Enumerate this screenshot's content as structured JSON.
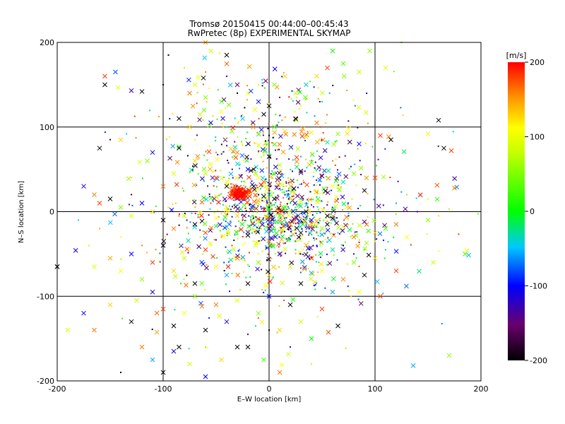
{
  "chart_data": {
    "type": "scatter",
    "title": "Tromsø 20150415 00:44:00–00:45:43",
    "subtitle": "RwPretec (8p) EXPERIMENTAL SKYMAP",
    "xlabel": "E–W location [km]",
    "ylabel": "N–S location [km]",
    "xlim": [
      -200,
      200
    ],
    "ylim": [
      -200,
      200
    ],
    "xticks": [
      "-200",
      "-100",
      "0",
      "100",
      "200"
    ],
    "yticks": [
      "-200",
      "-100",
      "0",
      "100",
      "200"
    ],
    "grid": true,
    "colorbar": {
      "label": "[m/s]",
      "range": [
        -200,
        200
      ],
      "ticks": [
        "-200",
        "-100",
        "0",
        "100",
        "200"
      ],
      "colormap": "rainbow (black-purple-blue-cyan-green-yellow-orange-red)"
    },
    "markers": [
      "cross",
      "dot"
    ],
    "clusters": [
      {
        "x": -28,
        "y": 22,
        "value": 200,
        "note": "dense red cluster"
      },
      {
        "x": 10,
        "y": -10,
        "value": 0
      },
      {
        "x": 40,
        "y": 0,
        "value": -150
      }
    ],
    "points": [
      [
        -155,
        160,
        180,
        1
      ],
      [
        -145,
        165,
        -80,
        1
      ],
      [
        -155,
        150,
        -200,
        1
      ],
      [
        -130,
        143,
        -130,
        1
      ],
      [
        -120,
        142,
        -200,
        1
      ],
      [
        -95,
        185,
        -200,
        0
      ],
      [
        -60,
        200,
        140,
        1
      ],
      [
        -55,
        190,
        60,
        1
      ],
      [
        -40,
        185,
        -200,
        1
      ],
      [
        -62,
        158,
        -200,
        1
      ],
      [
        -70,
        150,
        80,
        1
      ],
      [
        -75,
        140,
        160,
        1
      ],
      [
        -60,
        135,
        40,
        1
      ],
      [
        -45,
        130,
        20,
        1
      ],
      [
        -30,
        150,
        -150,
        1
      ],
      [
        -20,
        140,
        100,
        1
      ],
      [
        -10,
        130,
        -100,
        1
      ],
      [
        0,
        125,
        -200,
        1
      ],
      [
        5,
        150,
        40,
        1
      ],
      [
        15,
        160,
        120,
        1
      ],
      [
        25,
        140,
        60,
        1
      ],
      [
        35,
        150,
        -50,
        1
      ],
      [
        45,
        160,
        120,
        1
      ],
      [
        55,
        170,
        180,
        1
      ],
      [
        60,
        190,
        0,
        1
      ],
      [
        70,
        175,
        20,
        1
      ],
      [
        85,
        165,
        60,
        1
      ],
      [
        95,
        190,
        40,
        1
      ],
      [
        110,
        170,
        80,
        1
      ],
      [
        125,
        200,
        0,
        0
      ],
      [
        -85,
        110,
        -200,
        1
      ],
      [
        -75,
        100,
        120,
        1
      ],
      [
        -65,
        115,
        60,
        1
      ],
      [
        -55,
        105,
        -100,
        1
      ],
      [
        -45,
        118,
        100,
        1
      ],
      [
        -35,
        95,
        40,
        1
      ],
      [
        -25,
        110,
        -50,
        1
      ],
      [
        -15,
        100,
        150,
        1
      ],
      [
        -5,
        115,
        -200,
        1
      ],
      [
        5,
        100,
        20,
        1
      ],
      [
        15,
        95,
        120,
        1
      ],
      [
        25,
        110,
        -200,
        1
      ],
      [
        35,
        88,
        80,
        1
      ],
      [
        45,
        105,
        160,
        1
      ],
      [
        55,
        82,
        -30,
        1
      ],
      [
        65,
        92,
        40,
        1
      ],
      [
        75,
        98,
        100,
        1
      ],
      [
        85,
        80,
        -100,
        1
      ],
      [
        105,
        90,
        180,
        1
      ],
      [
        115,
        85,
        -200,
        1
      ],
      [
        160,
        108,
        -200,
        1
      ],
      [
        150,
        92,
        110,
        1
      ],
      [
        165,
        75,
        -200,
        1
      ],
      [
        172,
        72,
        180,
        1
      ],
      [
        175,
        28,
        160,
        1
      ],
      [
        -160,
        75,
        -200,
        1
      ],
      [
        -140,
        85,
        120,
        1
      ],
      [
        -115,
        60,
        40,
        1
      ],
      [
        -110,
        70,
        -100,
        1
      ],
      [
        -100,
        30,
        160,
        1
      ],
      [
        -90,
        45,
        80,
        1
      ],
      [
        -85,
        75,
        -200,
        1
      ],
      [
        -70,
        60,
        120,
        1
      ],
      [
        -60,
        45,
        60,
        1
      ],
      [
        -50,
        40,
        180,
        1
      ],
      [
        -40,
        30,
        -200,
        1
      ],
      [
        -30,
        70,
        160,
        1
      ],
      [
        -20,
        50,
        -100,
        1
      ],
      [
        -10,
        40,
        100,
        1
      ],
      [
        0,
        65,
        -200,
        1
      ],
      [
        10,
        55,
        60,
        1
      ],
      [
        20,
        35,
        140,
        1
      ],
      [
        30,
        48,
        -200,
        1
      ],
      [
        40,
        58,
        20,
        1
      ],
      [
        50,
        42,
        -150,
        1
      ],
      [
        60,
        30,
        100,
        1
      ],
      [
        70,
        35,
        -30,
        1
      ],
      [
        80,
        45,
        40,
        1
      ],
      [
        90,
        25,
        -200,
        1
      ],
      [
        100,
        40,
        180,
        1
      ],
      [
        -175,
        30,
        -120,
        1
      ],
      [
        -165,
        20,
        160,
        1
      ],
      [
        -160,
        10,
        180,
        1
      ],
      [
        -150,
        15,
        -200,
        1
      ],
      [
        -140,
        5,
        40,
        1
      ],
      [
        -130,
        -5,
        80,
        1
      ],
      [
        -120,
        10,
        -100,
        1
      ],
      [
        -110,
        0,
        120,
        1
      ],
      [
        -100,
        -10,
        -200,
        1
      ],
      [
        -90,
        -20,
        160,
        1
      ],
      [
        -80,
        -5,
        60,
        1
      ],
      [
        -70,
        -15,
        -200,
        1
      ],
      [
        -60,
        -25,
        180,
        1
      ],
      [
        -50,
        -8,
        100,
        1
      ],
      [
        -40,
        -18,
        -50,
        1
      ],
      [
        -30,
        -5,
        120,
        1
      ],
      [
        -20,
        -28,
        -200,
        1
      ],
      [
        -10,
        -12,
        60,
        1
      ],
      [
        0,
        -20,
        -100,
        1
      ],
      [
        10,
        -5,
        20,
        1
      ],
      [
        20,
        -15,
        140,
        1
      ],
      [
        30,
        -25,
        -200,
        1
      ],
      [
        40,
        -10,
        -120,
        1
      ],
      [
        50,
        -20,
        40,
        1
      ],
      [
        60,
        -8,
        -200,
        1
      ],
      [
        70,
        -18,
        80,
        1
      ],
      [
        80,
        -30,
        160,
        1
      ],
      [
        90,
        -12,
        -150,
        1
      ],
      [
        100,
        -25,
        120,
        1
      ],
      [
        110,
        -20,
        20,
        1
      ],
      [
        120,
        -15,
        160,
        1
      ],
      [
        150,
        -10,
        40,
        1
      ],
      [
        130,
        -30,
        100,
        1
      ],
      [
        -200,
        -65,
        -200,
        1
      ],
      [
        -165,
        -65,
        80,
        1
      ],
      [
        -150,
        -55,
        140,
        1
      ],
      [
        -140,
        -70,
        100,
        1
      ],
      [
        -130,
        -50,
        -100,
        1
      ],
      [
        -120,
        -80,
        40,
        1
      ],
      [
        -110,
        -60,
        180,
        1
      ],
      [
        -100,
        -40,
        -200,
        1
      ],
      [
        -90,
        -70,
        120,
        1
      ],
      [
        -80,
        -55,
        60,
        1
      ],
      [
        -70,
        -85,
        -200,
        1
      ],
      [
        -60,
        -45,
        180,
        1
      ],
      [
        -50,
        -65,
        100,
        1
      ],
      [
        -40,
        -75,
        -60,
        1
      ],
      [
        -30,
        -55,
        160,
        1
      ],
      [
        -20,
        -85,
        -200,
        1
      ],
      [
        -10,
        -60,
        40,
        1
      ],
      [
        0,
        -75,
        120,
        1
      ],
      [
        10,
        -50,
        -100,
        1
      ],
      [
        20,
        -65,
        60,
        1
      ],
      [
        30,
        -85,
        -200,
        1
      ],
      [
        40,
        -55,
        180,
        1
      ],
      [
        50,
        -70,
        100,
        1
      ],
      [
        60,
        -45,
        -30,
        1
      ],
      [
        70,
        -80,
        160,
        1
      ],
      [
        80,
        -60,
        40,
        1
      ],
      [
        90,
        -75,
        -200,
        1
      ],
      [
        100,
        -55,
        120,
        1
      ],
      [
        120,
        -70,
        180,
        1
      ],
      [
        155,
        -60,
        60,
        1
      ],
      [
        185,
        -50,
        20,
        1
      ],
      [
        -175,
        -120,
        -100,
        1
      ],
      [
        -165,
        -140,
        160,
        1
      ],
      [
        -150,
        -110,
        120,
        1
      ],
      [
        -130,
        -130,
        -200,
        1
      ],
      [
        -125,
        -105,
        60,
        1
      ],
      [
        -110,
        -95,
        -100,
        1
      ],
      [
        -100,
        -115,
        180,
        1
      ],
      [
        -90,
        -135,
        -200,
        1
      ],
      [
        -80,
        -120,
        100,
        1
      ],
      [
        -70,
        -100,
        40,
        1
      ],
      [
        -60,
        -140,
        -200,
        1
      ],
      [
        -50,
        -110,
        160,
        1
      ],
      [
        -40,
        -130,
        -120,
        1
      ],
      [
        -30,
        -105,
        80,
        1
      ],
      [
        -20,
        -160,
        -200,
        1
      ],
      [
        -10,
        -120,
        40,
        1
      ],
      [
        0,
        -100,
        -100,
        1
      ],
      [
        10,
        -140,
        120,
        1
      ],
      [
        20,
        -110,
        -200,
        1
      ],
      [
        30,
        -130,
        60,
        1
      ],
      [
        40,
        -150,
        0,
        1
      ],
      [
        50,
        -115,
        180,
        1
      ],
      [
        60,
        -95,
        -60,
        1
      ],
      [
        65,
        -135,
        -200,
        1
      ],
      [
        85,
        -95,
        100,
        1
      ],
      [
        105,
        -100,
        180,
        1
      ],
      [
        -120,
        -160,
        160,
        1
      ],
      [
        -110,
        -175,
        -60,
        1
      ],
      [
        -100,
        -190,
        -200,
        1
      ],
      [
        -90,
        -165,
        -120,
        1
      ],
      [
        -85,
        -160,
        -200,
        1
      ],
      [
        -75,
        -180,
        60,
        1
      ],
      [
        -60,
        -195,
        -100,
        1
      ],
      [
        -45,
        -175,
        120,
        1
      ],
      [
        -30,
        -160,
        -200,
        1
      ],
      [
        -5,
        -175,
        20,
        1
      ],
      [
        10,
        -190,
        160,
        1
      ],
      [
        170,
        -170,
        40,
        1
      ],
      [
        -190,
        -140,
        80,
        1
      ],
      [
        -140,
        -190,
        -200,
        0
      ],
      [
        -200,
        -65,
        -200,
        1
      ],
      [
        -28,
        22,
        200,
        1
      ],
      [
        -26,
        18,
        200,
        1
      ],
      [
        -30,
        24,
        200,
        1
      ],
      [
        -24,
        20,
        200,
        1
      ],
      [
        -32,
        19,
        200,
        1
      ],
      [
        -27,
        25,
        200,
        1
      ],
      [
        -22,
        23,
        200,
        1
      ],
      [
        -29,
        16,
        200,
        1
      ],
      [
        -25,
        21,
        200,
        1
      ],
      [
        -31,
        21,
        200,
        1
      ],
      [
        -10,
        20,
        -200,
        0
      ],
      [
        -5,
        18,
        -200,
        1
      ],
      [
        0,
        25,
        -150,
        0
      ],
      [
        5,
        15,
        -200,
        1
      ],
      [
        15,
        20,
        -100,
        0
      ],
      [
        20,
        10,
        -50,
        0
      ],
      [
        25,
        5,
        0,
        0
      ],
      [
        30,
        15,
        -20,
        0
      ],
      [
        35,
        0,
        -200,
        1
      ],
      [
        40,
        8,
        -150,
        0
      ],
      [
        45,
        -2,
        -30,
        0
      ],
      [
        50,
        12,
        20,
        0
      ],
      [
        55,
        -5,
        -200,
        1
      ],
      [
        60,
        5,
        -80,
        0
      ],
      [
        65,
        15,
        -120,
        0
      ],
      [
        -15,
        -5,
        0,
        0
      ],
      [
        -5,
        -10,
        -20,
        0
      ],
      [
        5,
        -5,
        -40,
        0
      ],
      [
        15,
        -10,
        20,
        0
      ],
      [
        25,
        -20,
        -10,
        0
      ],
      [
        35,
        -15,
        -60,
        0
      ],
      [
        45,
        -25,
        0,
        0
      ],
      [
        55,
        -15,
        -200,
        1
      ],
      [
        65,
        -25,
        -40,
        0
      ],
      [
        75,
        -5,
        -100,
        0
      ],
      [
        -5,
        5,
        -40,
        0
      ],
      [
        5,
        8,
        -60,
        0
      ],
      [
        15,
        -2,
        -30,
        0
      ],
      [
        25,
        2,
        10,
        0
      ],
      [
        35,
        -8,
        -20,
        0
      ],
      [
        -20,
        10,
        160,
        0
      ],
      [
        -40,
        5,
        120,
        0
      ],
      [
        -55,
        10,
        180,
        0
      ],
      [
        -65,
        0,
        140,
        0
      ],
      [
        -75,
        12,
        100,
        0
      ],
      [
        -85,
        -5,
        160,
        0
      ],
      [
        -95,
        5,
        120,
        0
      ],
      [
        -45,
        -30,
        140,
        0
      ],
      [
        -35,
        -40,
        180,
        0
      ],
      [
        -55,
        -40,
        100,
        0
      ],
      [
        -65,
        -30,
        60,
        0
      ],
      [
        -15,
        -35,
        80,
        0
      ],
      [
        5,
        -40,
        40,
        0
      ],
      [
        25,
        -45,
        -20,
        0
      ],
      [
        45,
        -40,
        -100,
        0
      ],
      [
        -50,
        70,
        160,
        0
      ],
      [
        -20,
        80,
        -100,
        0
      ],
      [
        0,
        90,
        -200,
        0
      ],
      [
        20,
        75,
        40,
        0
      ],
      [
        40,
        70,
        100,
        0
      ],
      [
        -70,
        85,
        80,
        0
      ],
      [
        -40,
        100,
        -20,
        0
      ],
      [
        -10,
        70,
        120,
        0
      ],
      [
        30,
        65,
        -60,
        0
      ],
      [
        60,
        60,
        160,
        0
      ],
      [
        -30,
        140,
        -200,
        0
      ],
      [
        -10,
        150,
        60,
        0
      ],
      [
        10,
        135,
        -150,
        0
      ],
      [
        30,
        125,
        100,
        0
      ],
      [
        50,
        130,
        -20,
        0
      ],
      [
        -100,
        150,
        -200,
        0
      ],
      [
        -80,
        170,
        120,
        0
      ],
      [
        -60,
        165,
        160,
        0
      ],
      [
        -40,
        160,
        -100,
        0
      ],
      [
        -20,
        170,
        40,
        0
      ],
      [
        70,
        -40,
        -200,
        0
      ],
      [
        80,
        -50,
        -120,
        0
      ],
      [
        90,
        -45,
        20,
        0
      ],
      [
        100,
        -35,
        80,
        0
      ],
      [
        110,
        -45,
        -40,
        0
      ],
      [
        -120,
        -40,
        160,
        0
      ],
      [
        -140,
        -30,
        100,
        0
      ],
      [
        -160,
        -20,
        140,
        0
      ],
      [
        -170,
        -40,
        60,
        0
      ],
      [
        -180,
        -10,
        -40,
        0
      ],
      [
        120,
        10,
        -60,
        0
      ],
      [
        130,
        20,
        40,
        0
      ],
      [
        140,
        0,
        -100,
        0
      ],
      [
        150,
        15,
        80,
        0
      ],
      [
        160,
        -5,
        120,
        0
      ],
      [
        0,
        -140,
        -200,
        0
      ],
      [
        20,
        -160,
        -100,
        0
      ],
      [
        40,
        -180,
        60,
        0
      ],
      [
        -20,
        -145,
        -160,
        0
      ],
      [
        -60,
        -160,
        40,
        0
      ]
    ]
  }
}
